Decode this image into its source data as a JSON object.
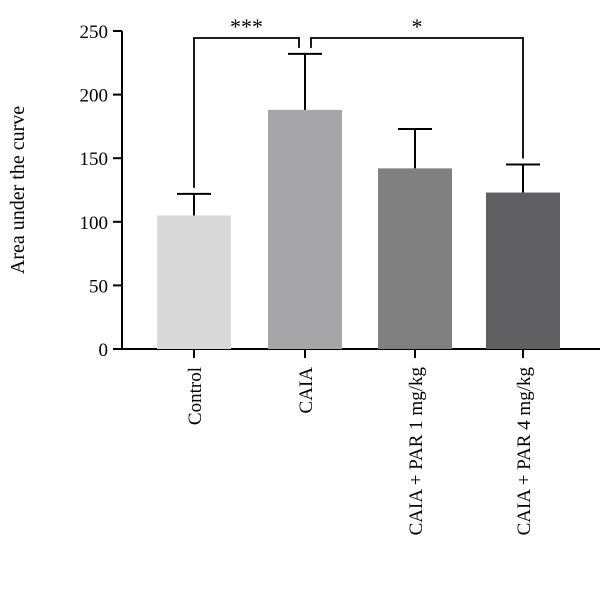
{
  "chart_data": {
    "type": "bar",
    "title": "",
    "xlabel": "",
    "ylabel": "Area under the curve",
    "ylim": [
      0,
      250
    ],
    "yticks": [
      0,
      50,
      100,
      150,
      200,
      250
    ],
    "categories": [
      "Control",
      "CAIA",
      "CAIA + PAR 1 mg/kg",
      "CAIA + PAR 4 mg/kg"
    ],
    "values": [
      105,
      188,
      142,
      123
    ],
    "errors": [
      17,
      44,
      31,
      22
    ],
    "colors": [
      "#d9d9d9",
      "#a6a6a8",
      "#808080",
      "#606062"
    ],
    "significance": [
      {
        "from": 0,
        "to": 1,
        "label": "***",
        "level": 243
      },
      {
        "from": 1,
        "to": 3,
        "label": "*",
        "level": 243
      }
    ],
    "grid": false,
    "legend": "none"
  }
}
